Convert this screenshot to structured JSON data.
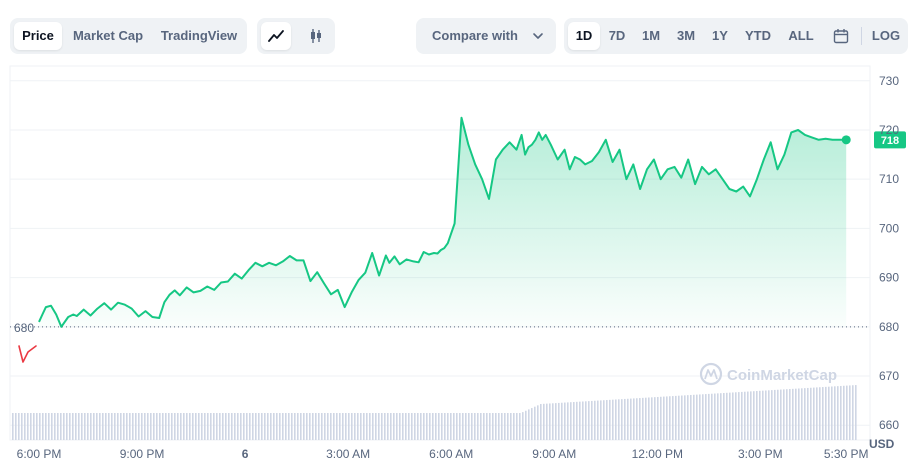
{
  "tabs": {
    "price": "Price",
    "market_cap": "Market Cap",
    "tradingview": "TradingView"
  },
  "chart_type_icons": [
    "line-chart-icon",
    "candlestick-icon"
  ],
  "compare": {
    "label": "Compare with",
    "icon": "chevron-down-icon"
  },
  "ranges": [
    "1D",
    "7D",
    "1M",
    "3M",
    "1Y",
    "YTD",
    "ALL"
  ],
  "range_selected": "1D",
  "calendar_icon": "calendar-icon",
  "scale_button": "LOG",
  "currency": "USD",
  "watermark": "CoinMarketCap",
  "colors": {
    "line": "#16c784",
    "badge": "#16c784",
    "mini_line": "#ea3943",
    "volume": "#cfd6e4",
    "grid": "#eff2f5"
  },
  "chart_data": {
    "type": "area",
    "title": "",
    "xlabel": "",
    "ylabel": "",
    "ylim": [
      657,
      733
    ],
    "ytick_values": [
      660,
      670,
      680,
      690,
      700,
      710,
      720,
      730
    ],
    "ytick_labels": [
      "660",
      "670",
      "680",
      "690",
      "700",
      "710",
      "720",
      "730"
    ],
    "xtick_labels": [
      "6:00 PM",
      "9:00 PM",
      "6",
      "3:00 AM",
      "6:00 AM",
      "9:00 AM",
      "12:00 PM",
      "3:00 PM",
      "5:30 PM"
    ],
    "xtick_hours": [
      0,
      3,
      6,
      9,
      12,
      15,
      18,
      21,
      23.5
    ],
    "open_price": 680,
    "open_price_label": "680",
    "last_price": 718,
    "last_price_label": "718",
    "series": [
      {
        "x_hours": [
          0,
          0.1,
          0.2,
          0.35,
          0.5,
          0.65,
          0.85,
          1.0,
          1.1,
          1.3,
          1.5,
          1.7,
          1.9,
          2.1,
          2.3,
          2.5,
          2.7,
          2.9,
          3.1,
          3.3,
          3.5,
          3.65,
          3.8,
          3.95,
          4.1,
          4.3,
          4.5,
          4.7,
          4.9,
          5.1,
          5.3,
          5.5,
          5.7,
          5.9,
          6.1,
          6.3,
          6.5,
          6.7,
          6.9,
          7.1,
          7.3,
          7.5,
          7.7,
          7.9,
          8.1,
          8.3,
          8.5,
          8.7,
          8.9,
          9.1,
          9.3,
          9.5,
          9.7,
          9.9,
          10.1,
          10.2,
          10.35,
          10.5,
          10.7,
          10.9,
          11.05,
          11.2,
          11.35,
          11.5,
          11.6,
          11.7,
          11.8,
          11.9,
          12.0,
          12.1,
          12.3,
          12.5,
          12.7,
          12.9,
          13.1,
          13.3,
          13.5,
          13.7,
          13.9,
          14.05,
          14.15,
          14.25,
          14.35,
          14.45,
          14.55,
          14.65,
          14.75,
          14.9,
          15.1,
          15.3,
          15.45,
          15.6,
          15.75,
          15.9,
          16.1,
          16.3,
          16.5,
          16.7,
          16.9,
          17.1,
          17.3,
          17.5,
          17.7,
          17.9,
          18.1,
          18.3,
          18.5,
          18.7,
          18.9,
          19.1,
          19.3,
          19.5,
          19.7,
          19.9,
          20.1,
          20.3,
          20.5,
          20.7,
          20.9,
          21.1,
          21.3,
          21.5,
          21.7,
          21.9,
          22.1,
          22.3,
          22.5,
          22.7,
          22.9,
          23.1,
          23.3,
          23.5
        ],
        "values": [
          681.0,
          682.5,
          684.0,
          684.3,
          682.5,
          680.0,
          682.0,
          682.5,
          682.2,
          683.5,
          682.3,
          683.7,
          684.8,
          683.5,
          684.9,
          684.5,
          683.7,
          682.1,
          683.2,
          682.0,
          681.8,
          685.0,
          686.5,
          687.4,
          686.4,
          688.0,
          687.0,
          687.3,
          688.2,
          687.5,
          689.0,
          689.2,
          690.8,
          689.8,
          691.5,
          693.0,
          692.3,
          693.0,
          692.5,
          693.3,
          694.4,
          693.5,
          693.5,
          689.3,
          691.1,
          688.8,
          686.6,
          687.5,
          684.0,
          687.0,
          689.5,
          691.0,
          695.0,
          690.4,
          694.5,
          693.0,
          694.3,
          692.7,
          693.7,
          693.3,
          693.1,
          695.2,
          694.7,
          695.0,
          694.9,
          695.6,
          696.0,
          697.0,
          699.0,
          701.0,
          722.5,
          717.0,
          713.0,
          710.0,
          706.0,
          714.0,
          716.0,
          717.5,
          716.0,
          719.0,
          715.0,
          716.5,
          717.0,
          718.0,
          719.5,
          718.0,
          719.0,
          717.0,
          714.0,
          716.0,
          712.0,
          714.5,
          714.0,
          713.0,
          713.7,
          715.5,
          718.0,
          713.5,
          716.0,
          710.0,
          713.0,
          708.0,
          712.0,
          714.0,
          710.0,
          712.0,
          712.5,
          710.3,
          714.0,
          709.0,
          712.5,
          711.0,
          712.0,
          710.0,
          708.0,
          707.5,
          708.5,
          706.5,
          710.0,
          714.0,
          717.5,
          712.0,
          715.0,
          719.5,
          720.0,
          719.0,
          718.5,
          718.0,
          718.2,
          718.0,
          718.0,
          718.0
        ]
      }
    ]
  }
}
